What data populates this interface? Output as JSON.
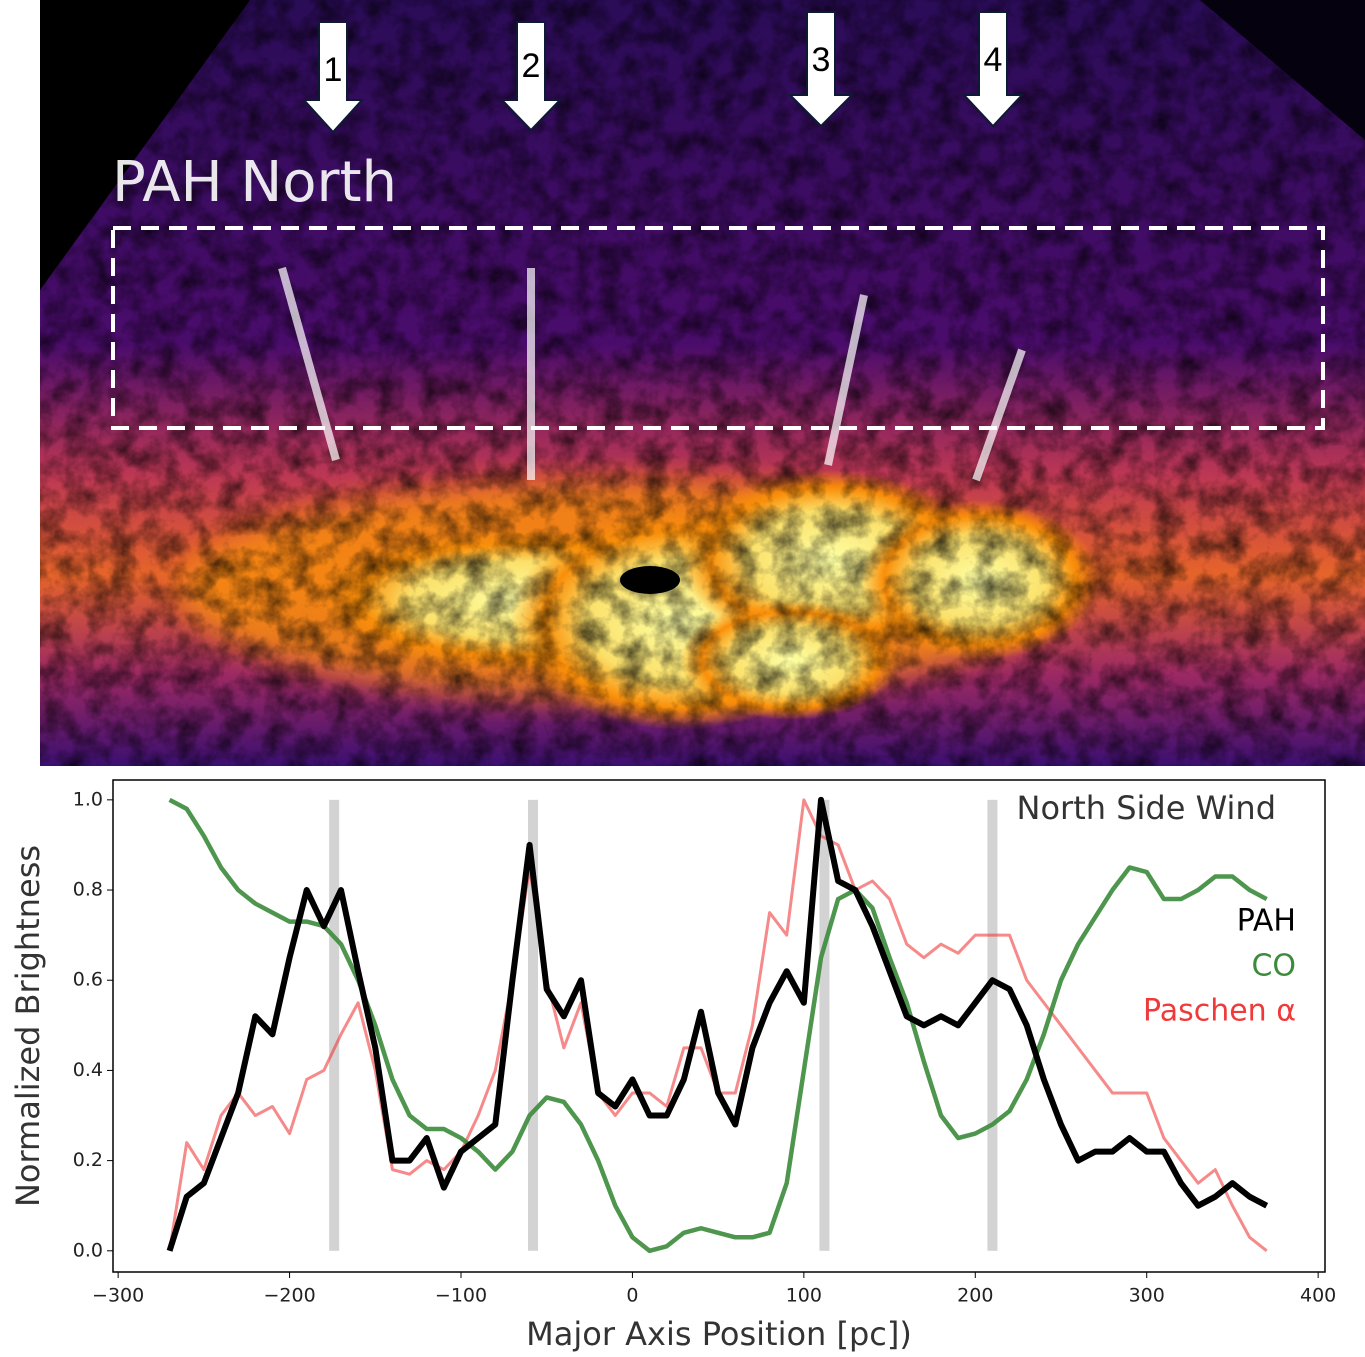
{
  "image": {
    "label": "PAH North",
    "markers": [
      "1",
      "2",
      "3",
      "4"
    ]
  },
  "chart_data": {
    "type": "line",
    "title": "North Side Wind",
    "x_label": "Major Axis Position [pc])",
    "y_label": "Normalized Brightness",
    "xlim": [
      -303,
      404
    ],
    "ylim": [
      -0.047,
      1.044
    ],
    "xticks": [
      {
        "value": -300,
        "label": "−300"
      },
      {
        "value": -200,
        "label": "−200"
      },
      {
        "value": -100,
        "label": "−100"
      },
      0,
      100,
      200,
      300,
      400
    ],
    "yticks": [
      {
        "value": 0,
        "label": "0.0"
      },
      {
        "value": 0.2,
        "label": "0.2"
      },
      {
        "value": 0.4,
        "label": "0.4"
      },
      {
        "value": 0.6,
        "label": "0.6"
      },
      {
        "value": 0.8,
        "label": "0.8"
      },
      {
        "value": 1,
        "label": "1.0"
      }
    ],
    "highlight_x": [
      -174,
      -58,
      112,
      210
    ],
    "x": [
      -270,
      -260,
      -250,
      -240,
      -230,
      -220,
      -210,
      -200,
      -190,
      -180,
      -170,
      -160,
      -150,
      -140,
      -130,
      -120,
      -110,
      -100,
      -90,
      -80,
      -70,
      -60,
      -50,
      -40,
      -30,
      -20,
      -10,
      0,
      10,
      20,
      30,
      40,
      50,
      60,
      70,
      80,
      90,
      100,
      110,
      120,
      130,
      140,
      150,
      160,
      170,
      180,
      190,
      200,
      210,
      220,
      230,
      240,
      250,
      260,
      270,
      280,
      290,
      300,
      310,
      320,
      330,
      340,
      350,
      360,
      370
    ],
    "series": [
      {
        "name": "Paschen α",
        "color": "#f03a3a",
        "values": [
          0.0,
          0.24,
          0.18,
          0.3,
          0.35,
          0.3,
          0.32,
          0.26,
          0.38,
          0.4,
          0.48,
          0.55,
          0.4,
          0.18,
          0.17,
          0.2,
          0.18,
          0.22,
          0.3,
          0.4,
          0.6,
          0.85,
          0.6,
          0.45,
          0.55,
          0.35,
          0.3,
          0.35,
          0.35,
          0.32,
          0.45,
          0.45,
          0.35,
          0.35,
          0.5,
          0.75,
          0.7,
          1.0,
          0.92,
          0.9,
          0.8,
          0.82,
          0.78,
          0.68,
          0.65,
          0.68,
          0.66,
          0.7,
          0.7,
          0.7,
          0.6,
          0.55,
          0.5,
          0.45,
          0.4,
          0.35,
          0.35,
          0.35,
          0.25,
          0.2,
          0.15,
          0.18,
          0.1,
          0.03,
          0.0
        ]
      },
      {
        "name": "CO",
        "color": "#3b8b3b",
        "values": [
          1.0,
          0.98,
          0.92,
          0.85,
          0.8,
          0.77,
          0.75,
          0.73,
          0.73,
          0.72,
          0.68,
          0.6,
          0.5,
          0.38,
          0.3,
          0.27,
          0.27,
          0.25,
          0.22,
          0.18,
          0.22,
          0.3,
          0.34,
          0.33,
          0.28,
          0.2,
          0.1,
          0.03,
          0.0,
          0.01,
          0.04,
          0.05,
          0.04,
          0.03,
          0.03,
          0.04,
          0.15,
          0.4,
          0.65,
          0.78,
          0.8,
          0.76,
          0.65,
          0.55,
          0.42,
          0.3,
          0.25,
          0.26,
          0.28,
          0.31,
          0.38,
          0.48,
          0.6,
          0.68,
          0.74,
          0.8,
          0.85,
          0.84,
          0.78,
          0.78,
          0.8,
          0.83,
          0.83,
          0.8,
          0.78
        ]
      },
      {
        "name": "PAH",
        "color": "#000000",
        "values": [
          0.0,
          0.12,
          0.15,
          0.25,
          0.35,
          0.52,
          0.48,
          0.65,
          0.8,
          0.72,
          0.8,
          0.62,
          0.45,
          0.2,
          0.2,
          0.25,
          0.14,
          0.22,
          0.25,
          0.28,
          0.6,
          0.9,
          0.58,
          0.52,
          0.6,
          0.35,
          0.32,
          0.38,
          0.3,
          0.3,
          0.38,
          0.53,
          0.35,
          0.28,
          0.45,
          0.55,
          0.62,
          0.55,
          1.0,
          0.82,
          0.8,
          0.72,
          0.62,
          0.52,
          0.5,
          0.52,
          0.5,
          0.55,
          0.6,
          0.58,
          0.5,
          0.38,
          0.28,
          0.2,
          0.22,
          0.22,
          0.25,
          0.22,
          0.22,
          0.15,
          0.1,
          0.12,
          0.15,
          0.12,
          0.1
        ]
      }
    ]
  }
}
